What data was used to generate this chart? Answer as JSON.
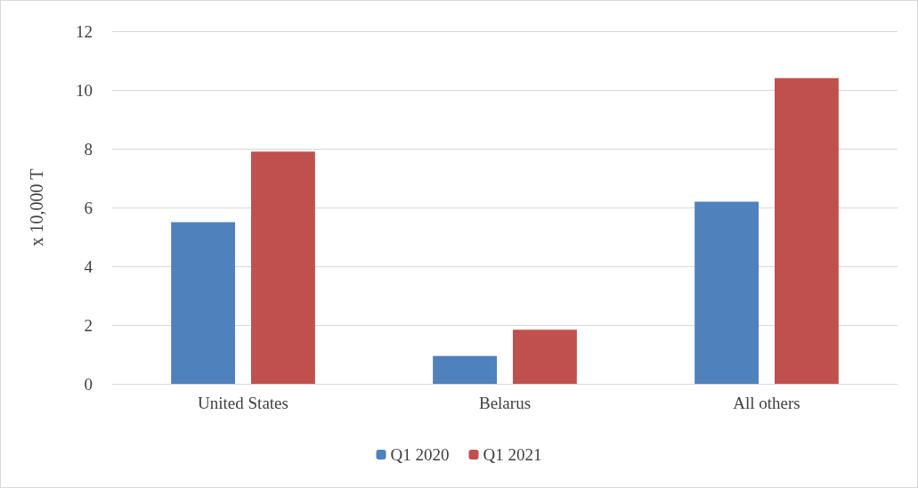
{
  "chart_data": {
    "type": "bar",
    "ylabel": "x 10,000 T",
    "categories": [
      "United States",
      "Belarus",
      "All others"
    ],
    "series": [
      {
        "name": "Q1 2020",
        "color": "#4f81bd",
        "values": [
          5.5,
          0.95,
          6.2
        ]
      },
      {
        "name": "Q1 2021",
        "color": "#c0504d",
        "values": [
          7.9,
          1.84,
          10.4
        ]
      }
    ],
    "ylim": [
      0,
      12
    ],
    "yticks": [
      0,
      2,
      4,
      6,
      8,
      10,
      12
    ],
    "grid": "y",
    "legend": "bottom"
  }
}
